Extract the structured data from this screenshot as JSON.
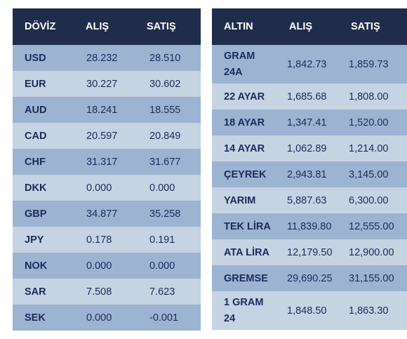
{
  "doviz": {
    "headers": [
      "DÖVİZ",
      "ALIŞ",
      "SATIŞ"
    ],
    "rows": [
      {
        "name": "USD",
        "alis": "28.232",
        "satis": "28.510"
      },
      {
        "name": "EUR",
        "alis": "30.227",
        "satis": "30.602"
      },
      {
        "name": "AUD",
        "alis": "18.241",
        "satis": "18.555"
      },
      {
        "name": "CAD",
        "alis": "20.597",
        "satis": "20.849"
      },
      {
        "name": "CHF",
        "alis": "31.317",
        "satis": "31.677"
      },
      {
        "name": "DKK",
        "alis": "0.000",
        "satis": "0.000"
      },
      {
        "name": "GBP",
        "alis": "34.877",
        "satis": "35.258"
      },
      {
        "name": "JPY",
        "alis": "0.178",
        "satis": "0.191"
      },
      {
        "name": "NOK",
        "alis": "0.000",
        "satis": "0.000"
      },
      {
        "name": "SAR",
        "alis": "7.508",
        "satis": "7.623"
      },
      {
        "name": "SEK",
        "alis": "0.000",
        "satis": "-0.001"
      }
    ]
  },
  "altin": {
    "headers": [
      "ALTIN",
      "ALIŞ",
      "SATIŞ"
    ],
    "rows": [
      {
        "name": "GRAM 24A",
        "alis": "1,842.73",
        "satis": "1,859.73"
      },
      {
        "name": "22 AYAR",
        "alis": "1,685.68",
        "satis": "1,808.00"
      },
      {
        "name": "18 AYAR",
        "alis": "1,347.41",
        "satis": "1,520.00"
      },
      {
        "name": "14 AYAR",
        "alis": "1,062.89",
        "satis": "1,214.00"
      },
      {
        "name": "ÇEYREK",
        "alis": "2,943.81",
        "satis": "3,145.00"
      },
      {
        "name": "YARIM",
        "alis": "5,887.63",
        "satis": "6,300.00"
      },
      {
        "name": "TEK LİRA",
        "alis": "11,839.80",
        "satis": "12,555.00"
      },
      {
        "name": "ATA LİRA",
        "alis": "12,179.50",
        "satis": "12,900.00"
      },
      {
        "name": "GREMSE",
        "alis": "29,690.25",
        "satis": "31,155.00"
      },
      {
        "name": "1 GRAM 24",
        "alis": "1,848.50",
        "satis": "1,863.30"
      }
    ]
  },
  "colors": {
    "header_bg": "#1f2d4a",
    "header_text": "#ffffff",
    "row_dark": "#9cb4d2",
    "row_light": "#c6d3e2",
    "cell_text": "#1c2a5c"
  }
}
